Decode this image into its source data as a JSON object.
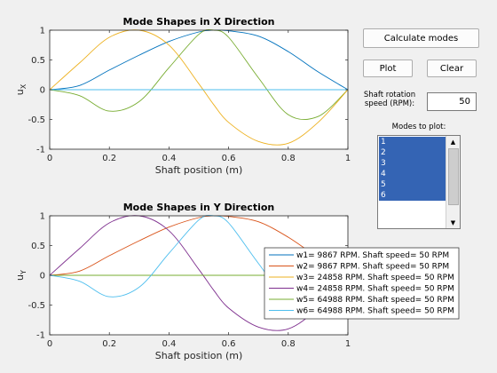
{
  "controls": {
    "calculate_label": "Calculate modes",
    "plot_label": "Plot",
    "clear_label": "Clear",
    "speed_label_line1": "Shaft rotation",
    "speed_label_line2": "speed (RPM):",
    "speed_value": "50",
    "modes_label": "Modes to plot:",
    "modes": [
      "1",
      "2",
      "3",
      "4",
      "5",
      "6"
    ]
  },
  "chart_data": [
    {
      "type": "line",
      "title": "Mode Shapes in X Direction",
      "xlabel": "Shaft position (m)",
      "ylabel": "u",
      "ylabel_sub": "X",
      "xlim": [
        0,
        1
      ],
      "ylim": [
        -1,
        1
      ],
      "xticks": [
        "0",
        "0.2",
        "0.4",
        "0.6",
        "0.8",
        "1"
      ],
      "yticks": [
        "-1",
        "-0.5",
        "0",
        "0.5",
        "1"
      ],
      "x": [
        0,
        0.1,
        0.2,
        0.3,
        0.4,
        0.5,
        0.55,
        0.6,
        0.7,
        0.8,
        0.9,
        1
      ],
      "series": [
        {
          "values": [
            0,
            0.07,
            0.33,
            0.58,
            0.81,
            0.97,
            1.0,
            0.99,
            0.9,
            0.64,
            0.3,
            0
          ],
          "color": "#0072bd"
        },
        {
          "values": [
            0,
            -0.1,
            -0.36,
            -0.2,
            0.37,
            0.93,
            1.0,
            0.88,
            0.2,
            -0.42,
            -0.45,
            0
          ],
          "color": "#77ac30"
        },
        {
          "values": [
            0,
            0.45,
            0.88,
            1.0,
            0.75,
            0.1,
            -0.25,
            -0.55,
            -0.87,
            -0.9,
            -0.55,
            0
          ],
          "color": "#edb120"
        },
        {
          "values": [
            0,
            0,
            0,
            0,
            0,
            0,
            0,
            0,
            0,
            0,
            0,
            0
          ],
          "color": "#4dbeee"
        }
      ]
    },
    {
      "type": "line",
      "title": "Mode Shapes in Y Direction",
      "xlabel": "Shaft position (m)",
      "ylabel": "u",
      "ylabel_sub": "Y",
      "xlim": [
        0,
        1
      ],
      "ylim": [
        -1,
        1
      ],
      "xticks": [
        "0",
        "0.2",
        "0.4",
        "0.6",
        "0.8",
        "1"
      ],
      "yticks": [
        "-1",
        "-0.5",
        "0",
        "0.5",
        "1"
      ],
      "x": [
        0,
        0.1,
        0.2,
        0.3,
        0.4,
        0.5,
        0.55,
        0.6,
        0.7,
        0.8,
        0.9,
        1
      ],
      "series": [
        {
          "values": [
            0,
            0,
            0,
            0,
            0,
            0,
            0,
            0,
            0,
            0,
            0,
            0
          ],
          "color": "#0072bd"
        },
        {
          "values": [
            0,
            0.07,
            0.33,
            0.58,
            0.81,
            0.97,
            1.0,
            0.99,
            0.9,
            0.64,
            0.3,
            0
          ],
          "color": "#d95319"
        },
        {
          "values": [
            0,
            0,
            0,
            0,
            0,
            0,
            0,
            0,
            0,
            0,
            0,
            0
          ],
          "color": "#edb120"
        },
        {
          "values": [
            0,
            0.45,
            0.88,
            1.0,
            0.75,
            0.1,
            -0.25,
            -0.55,
            -0.87,
            -0.9,
            -0.55,
            0
          ],
          "color": "#7e2f8e"
        },
        {
          "values": [
            0,
            0,
            0,
            0,
            0,
            0,
            0,
            0,
            0,
            0,
            0,
            0
          ],
          "color": "#77ac30"
        },
        {
          "values": [
            0,
            -0.1,
            -0.36,
            -0.2,
            0.37,
            0.93,
            1.0,
            0.88,
            0.2,
            -0.42,
            -0.45,
            0
          ],
          "color": "#4dbeee"
        }
      ],
      "legend": [
        {
          "text": "w1= 9867 RPM. Shaft speed= 50 RPM",
          "color": "#0072bd"
        },
        {
          "text": "w2= 9867 RPM. Shaft speed= 50 RPM",
          "color": "#d95319"
        },
        {
          "text": "w3= 24858 RPM. Shaft speed= 50 RPM",
          "color": "#edb120"
        },
        {
          "text": "w4= 24858 RPM. Shaft speed= 50 RPM",
          "color": "#7e2f8e"
        },
        {
          "text": "w5= 64988 RPM. Shaft speed= 50 RPM",
          "color": "#77ac30"
        },
        {
          "text": "w6= 64988 RPM. Shaft speed= 50 RPM",
          "color": "#4dbeee"
        }
      ],
      "legend_position": "bottom-right"
    }
  ]
}
